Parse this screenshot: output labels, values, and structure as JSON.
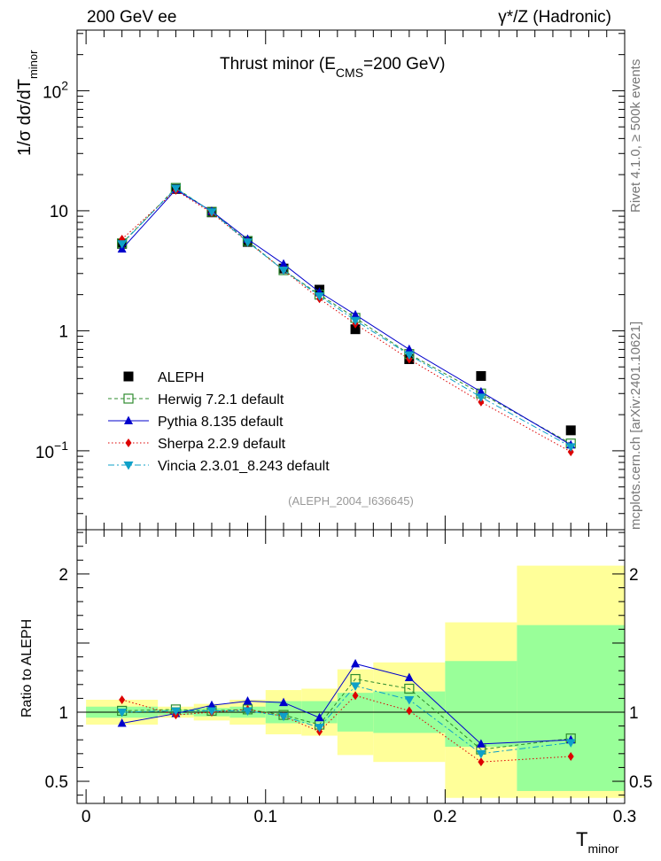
{
  "header": {
    "left": "200 GeV ee",
    "right": "γ*/Z (Hadronic)"
  },
  "side": {
    "rivet": "Rivet 4.1.0, ≥ 500k events",
    "mcplots": "mcplots.cern.ch [arXiv:2401.10621]"
  },
  "chart_data": [
    {
      "type": "scatter",
      "title": "Thrust minor (E_CMS=200 GeV)",
      "title_parts": {
        "main": "Thrust minor (E",
        "sub": "CMS",
        "tail": "=200 GeV)"
      },
      "ylabel": "1/σ  dσ/dT_minor",
      "ylabel_parts": {
        "main": "1/σ  dσ/dT",
        "sub": "minor"
      },
      "yscale": "log",
      "ylim": [
        0.022,
        320
      ],
      "xlim": [
        -0.005,
        0.3
      ],
      "yticks": [
        {
          "value": 100,
          "label": "10",
          "exp": "2"
        },
        {
          "value": 10,
          "label": "10"
        },
        {
          "value": 1,
          "label": "1"
        },
        {
          "value": 0.1,
          "label": "10",
          "exp": "−1"
        }
      ],
      "watermark": "(ALEPH_2004_I636645)",
      "x": [
        0.02,
        0.05,
        0.07,
        0.09,
        0.11,
        0.13,
        0.15,
        0.18,
        0.22,
        0.27
      ],
      "series": [
        {
          "name": "ALEPH",
          "color": "#000000",
          "marker": "square",
          "values": [
            5.3,
            15.2,
            9.7,
            5.5,
            3.3,
            2.2,
            1.03,
            0.58,
            0.42,
            0.148
          ]
        },
        {
          "name": "Herwig 7.2.1 default",
          "color": "#2e8b2e",
          "marker": "open-square",
          "dash": "4,3",
          "values": [
            5.35,
            15.5,
            9.8,
            5.6,
            3.2,
            2.0,
            1.28,
            0.64,
            0.3,
            0.115
          ]
        },
        {
          "name": "Pythia 8.135 default",
          "color": "#0000cc",
          "marker": "triangle-up",
          "dash": "",
          "values": [
            4.8,
            15.0,
            9.9,
            5.8,
            3.6,
            2.1,
            1.36,
            0.7,
            0.31,
            0.112
          ]
        },
        {
          "name": "Sherpa 2.2.9 default",
          "color": "#dd0000",
          "marker": "diamond",
          "dash": "1.5,2.5",
          "values": [
            5.8,
            14.8,
            9.6,
            5.5,
            3.2,
            1.85,
            1.14,
            0.58,
            0.255,
            0.098
          ]
        },
        {
          "name": "Vincia 2.3.01_8.243 default",
          "color": "#0fa0c8",
          "marker": "triangle-down",
          "dash": "7,3,2,3",
          "values": [
            5.3,
            15.4,
            9.8,
            5.5,
            3.2,
            1.95,
            1.22,
            0.63,
            0.28,
            0.108
          ]
        }
      ]
    },
    {
      "type": "scatter",
      "ylabel": "Ratio to ALEPH",
      "xlabel": "T_minor",
      "xlabel_parts": {
        "main": "T",
        "sub": "minor"
      },
      "ylim": [
        0.34,
        2.32
      ],
      "xlim": [
        -0.005,
        0.3
      ],
      "yticks": [
        {
          "value": 2,
          "label": "2"
        },
        {
          "value": 1,
          "label": "1"
        },
        {
          "value": 0.5,
          "label": "0.5"
        }
      ],
      "xticks": [
        {
          "value": 0,
          "label": "0"
        },
        {
          "value": 0.1,
          "label": "0.1"
        },
        {
          "value": 0.2,
          "label": "0.2"
        },
        {
          "value": 0.3,
          "label": "0.3"
        }
      ],
      "bins": [
        [
          0.0,
          0.04
        ],
        [
          0.04,
          0.06
        ],
        [
          0.06,
          0.08
        ],
        [
          0.08,
          0.1
        ],
        [
          0.1,
          0.12
        ],
        [
          0.12,
          0.14
        ],
        [
          0.14,
          0.16
        ],
        [
          0.16,
          0.2
        ],
        [
          0.2,
          0.24
        ],
        [
          0.24,
          0.3
        ]
      ],
      "band_yellow": [
        [
          0.91,
          1.09
        ],
        [
          0.96,
          1.04
        ],
        [
          0.94,
          1.06
        ],
        [
          0.91,
          1.09
        ],
        [
          0.84,
          1.16
        ],
        [
          0.83,
          1.17
        ],
        [
          0.69,
          1.31
        ],
        [
          0.64,
          1.36
        ],
        [
          0.38,
          1.65
        ],
        [
          0.38,
          2.06
        ]
      ],
      "band_green": [
        [
          0.96,
          1.04
        ],
        [
          0.98,
          1.02
        ],
        [
          0.97,
          1.03
        ],
        [
          0.96,
          1.04
        ],
        [
          0.92,
          1.08
        ],
        [
          0.92,
          1.08
        ],
        [
          0.86,
          1.14
        ],
        [
          0.85,
          1.15
        ],
        [
          0.75,
          1.37
        ],
        [
          0.43,
          1.63
        ]
      ],
      "x": [
        0.02,
        0.05,
        0.07,
        0.09,
        0.11,
        0.13,
        0.15,
        0.18,
        0.22,
        0.27
      ],
      "series": [
        {
          "name": "Herwig 7.2.1 default",
          "color": "#2e8b2e",
          "marker": "open-square",
          "dash": "4,3",
          "values": [
            1.01,
            1.02,
            1.01,
            1.02,
            0.98,
            0.91,
            1.24,
            1.17,
            0.73,
            0.81
          ]
        },
        {
          "name": "Pythia 8.135 default",
          "color": "#0000cc",
          "marker": "triangle-up",
          "dash": "",
          "values": [
            0.92,
            0.99,
            1.05,
            1.08,
            1.07,
            0.96,
            1.35,
            1.25,
            0.77,
            0.8
          ]
        },
        {
          "name": "Sherpa 2.2.9 default",
          "color": "#dd0000",
          "marker": "diamond",
          "dash": "1.5,2.5",
          "values": [
            1.09,
            0.98,
            1.0,
            1.02,
            0.97,
            0.86,
            1.12,
            1.01,
            0.64,
            0.68
          ]
        },
        {
          "name": "Vincia 2.3.01_8.243 default",
          "color": "#0fa0c8",
          "marker": "triangle-down",
          "dash": "7,3,2,3",
          "values": [
            1.0,
            1.01,
            1.01,
            1.01,
            0.97,
            0.89,
            1.19,
            1.09,
            0.7,
            0.78
          ]
        }
      ]
    }
  ]
}
